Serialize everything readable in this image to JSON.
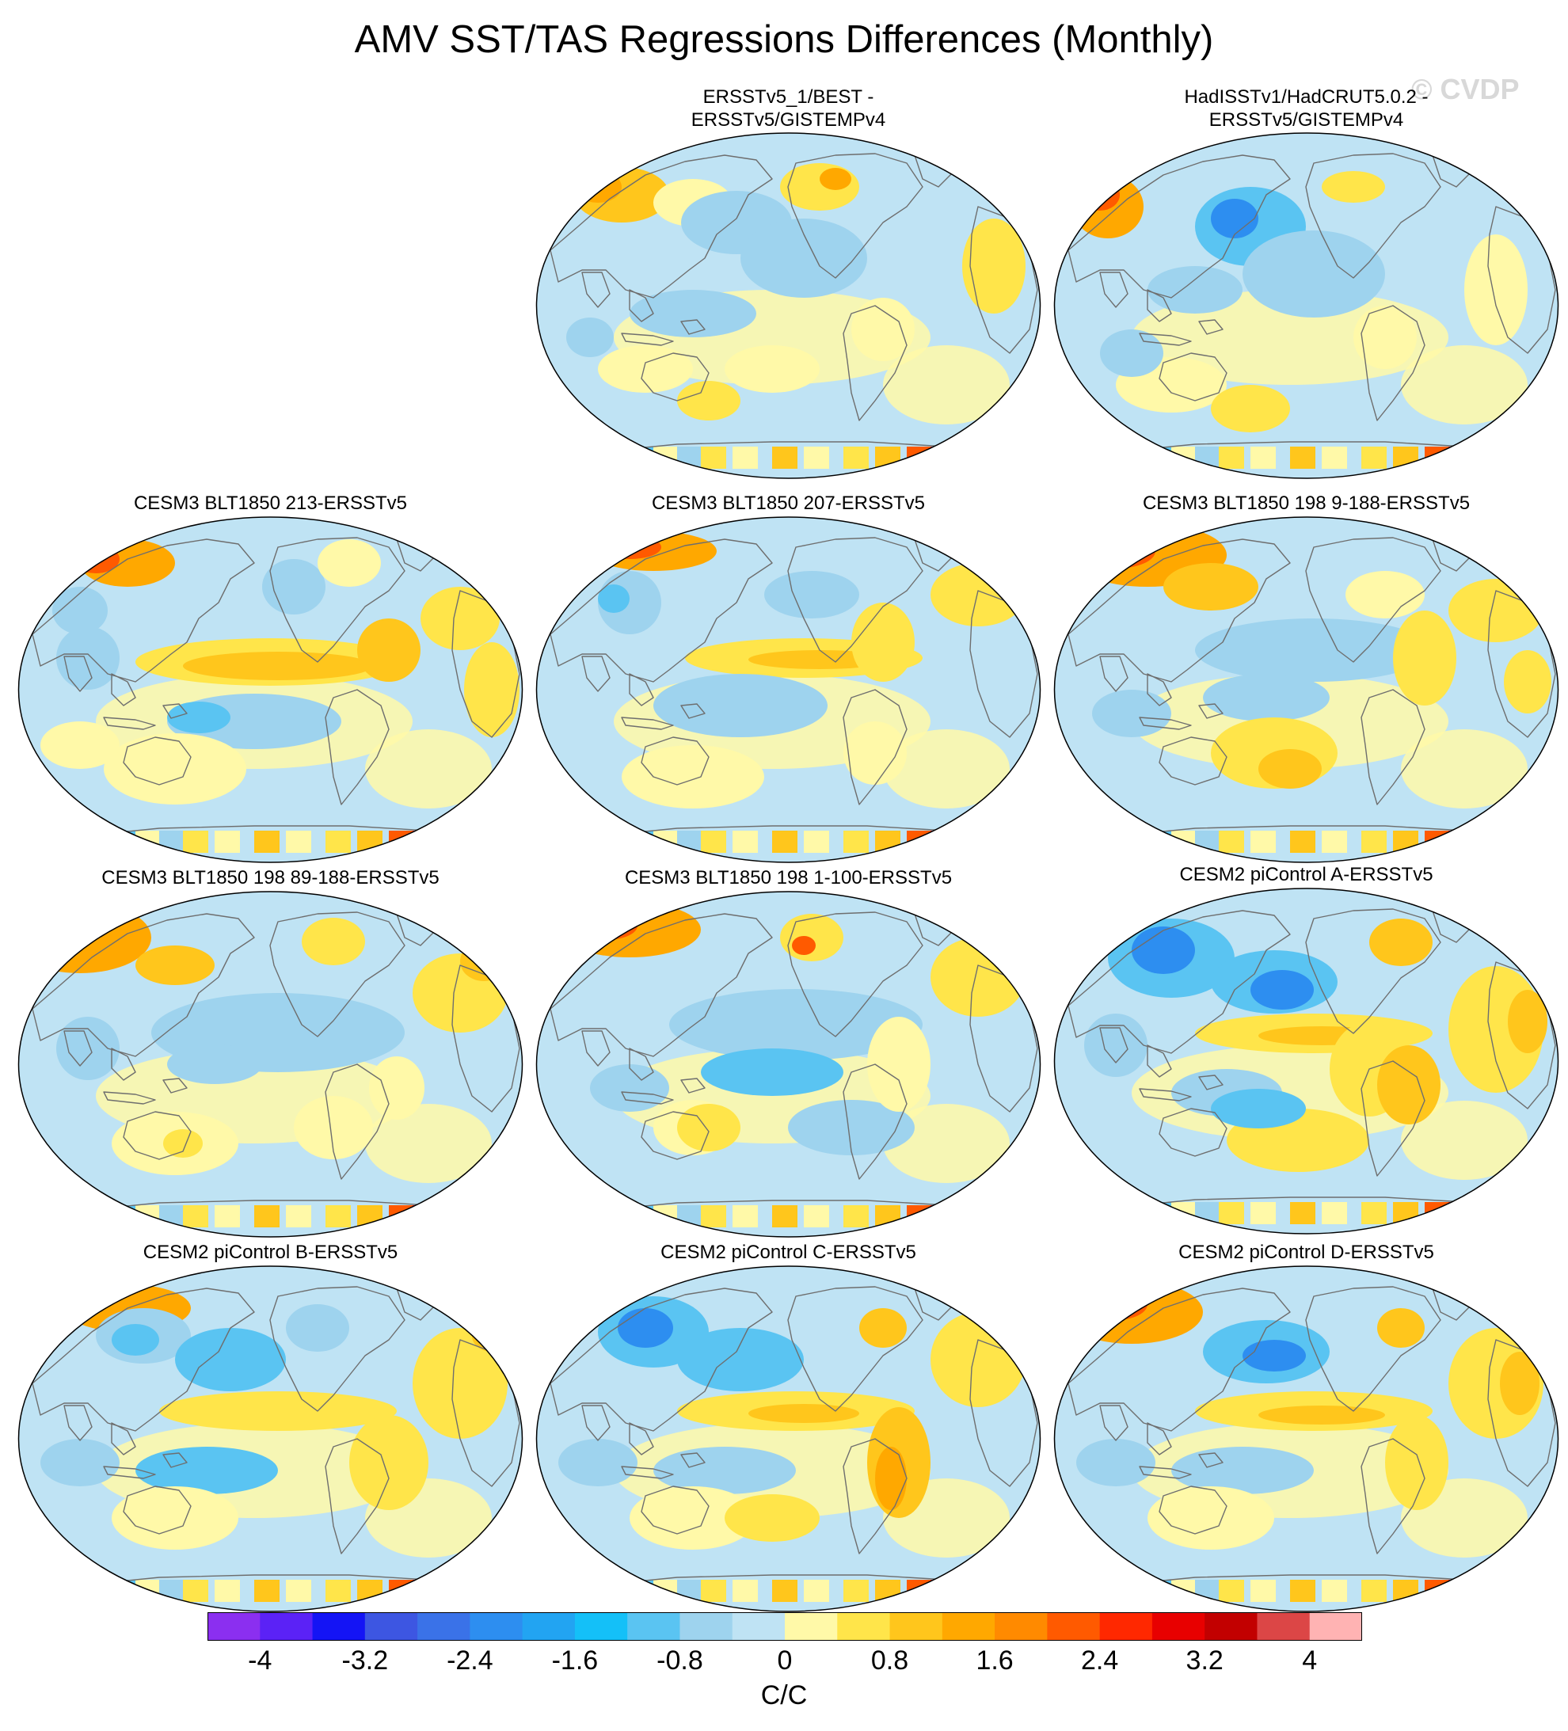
{
  "title": "AMV SST/TAS Regressions Differences (Monthly)",
  "watermark": "© CVDP",
  "panels": [
    {
      "id": "p1",
      "title": "ERSSTv5_1/BEST -\nERSSTv5/GISTEMPv4",
      "pattern": 0
    },
    {
      "id": "p2",
      "title": "HadISSTv1/HadCRUT5.0.2 -\nERSSTv5/GISTEMPv4",
      "pattern": 1
    },
    {
      "id": "p3",
      "title": "CESM3 BLT1850 213-ERSSTv5",
      "pattern": 2
    },
    {
      "id": "p4",
      "title": "CESM3 BLT1850 207-ERSSTv5",
      "pattern": 3
    },
    {
      "id": "p5",
      "title": "CESM3 BLT1850 198 9-188-ERSSTv5",
      "pattern": 4
    },
    {
      "id": "p6",
      "title": "CESM3 BLT1850 198 89-188-ERSSTv5",
      "pattern": 5
    },
    {
      "id": "p7",
      "title": "CESM3 BLT1850 198 1-100-ERSSTv5",
      "pattern": 6
    },
    {
      "id": "p8",
      "title": "CESM2 piControl A-ERSSTv5",
      "pattern": 7
    },
    {
      "id": "p9",
      "title": "CESM2 piControl B-ERSSTv5",
      "pattern": 8
    },
    {
      "id": "p10",
      "title": "CESM2 piControl C-ERSSTv5",
      "pattern": 9
    },
    {
      "id": "p11",
      "title": "CESM2 piControl D-ERSSTv5",
      "pattern": 10
    }
  ],
  "colorbar": {
    "colors": [
      "#8b2ff0",
      "#5b22f6",
      "#1414f5",
      "#3d56e2",
      "#3a72e8",
      "#2d8ef0",
      "#22a4f2",
      "#14c0f8",
      "#5ac4f2",
      "#9ed3ee",
      "#bfe3f4",
      "#fff9a8",
      "#ffe54a",
      "#ffc61c",
      "#ffa800",
      "#ff8a00",
      "#ff5a00",
      "#ff2800",
      "#e80000",
      "#c20000",
      "#dc4646",
      "#ffb3b3"
    ],
    "labels": [
      "-4",
      "-3.2",
      "-2.4",
      "-1.6",
      "-0.8",
      "0",
      "0.8",
      "1.6",
      "2.4",
      "3.2",
      "4"
    ],
    "units": "C/C"
  }
}
